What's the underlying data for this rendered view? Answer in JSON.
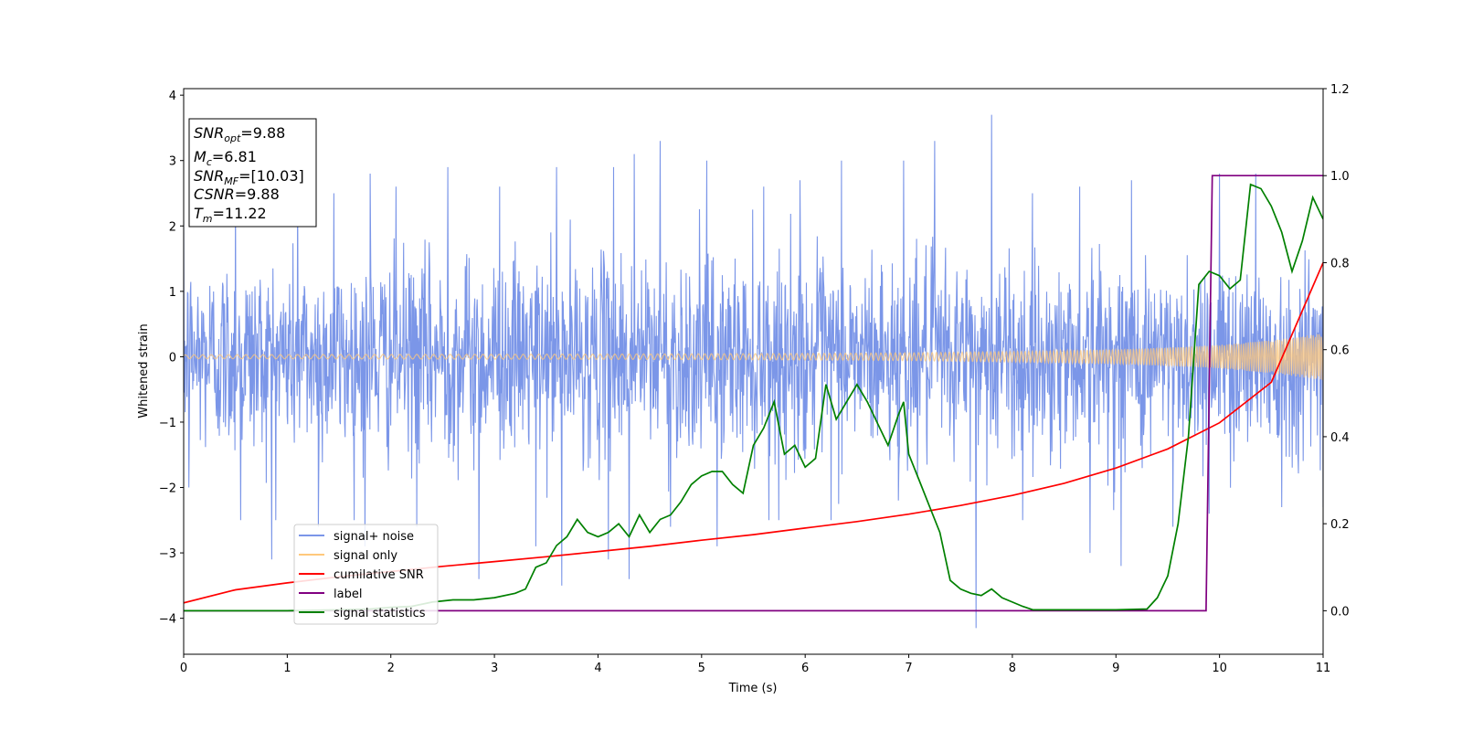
{
  "chart_data": {
    "type": "line",
    "xlabel": "Time (s)",
    "ylabel": "Whitened strain",
    "xlim": [
      0,
      11
    ],
    "ylim_left": [
      -4.55,
      4.1
    ],
    "ylim_right": [
      -0.1,
      1.2
    ],
    "x_ticks": [
      0,
      1,
      2,
      3,
      4,
      5,
      6,
      7,
      8,
      9,
      10,
      11
    ],
    "y_ticks_left": [
      -4,
      -3,
      -2,
      -1,
      0,
      1,
      2,
      3,
      4
    ],
    "y_ticks_left_labels": [
      "−4",
      "−3",
      "−2",
      "−1",
      "0",
      "1",
      "2",
      "3",
      "4"
    ],
    "y_ticks_right": [
      0.0,
      0.2,
      0.4,
      0.6,
      0.8,
      1.0,
      1.2
    ],
    "y_ticks_right_labels": [
      "0.0",
      "0.2",
      "0.4",
      "0.6",
      "0.8",
      "1.0",
      "1.2"
    ],
    "legend_position": "lower-left",
    "grid": false,
    "annotation_box": {
      "position": "top-left",
      "lines": [
        {
          "sym": "SNR",
          "sub": "opt",
          "val": "=9.88"
        },
        {
          "sym": "M",
          "sub": "c",
          "val": "=6.81"
        },
        {
          "sym": "SNR",
          "sub": "MF",
          "val": "=[10.03]"
        },
        {
          "sym": "CSNR",
          "sub": "",
          "val": "=9.88"
        },
        {
          "sym": "T",
          "sub": "m",
          "val": "=11.22"
        }
      ]
    },
    "series": [
      {
        "name": "signal+ noise",
        "color": "#7b96e8",
        "axis": "left",
        "description_stats": {
          "typical_amplitude": 1.6,
          "max": 3.7,
          "min": -4.15
        },
        "spikes": [
          [
            0.5,
            2.6
          ],
          [
            0.85,
            2.7
          ],
          [
            1.1,
            2.6
          ],
          [
            1.45,
            2.5
          ],
          [
            1.8,
            2.8
          ],
          [
            2.05,
            2.6
          ],
          [
            2.55,
            2.9
          ],
          [
            3.05,
            2.6
          ],
          [
            3.6,
            2.9
          ],
          [
            4.15,
            2.9
          ],
          [
            4.35,
            3.1
          ],
          [
            4.6,
            3.3
          ],
          [
            5.05,
            3.0
          ],
          [
            5.6,
            2.6
          ],
          [
            5.95,
            2.7
          ],
          [
            6.35,
            3.0
          ],
          [
            6.95,
            3.0
          ],
          [
            7.25,
            3.3
          ],
          [
            7.8,
            3.7
          ],
          [
            8.65,
            2.6
          ],
          [
            9.15,
            2.7
          ],
          [
            10.0,
            2.8
          ],
          [
            10.35,
            2.8
          ],
          [
            0.05,
            -2.0
          ],
          [
            0.55,
            -2.5
          ],
          [
            0.85,
            -3.1
          ],
          [
            1.3,
            -2.6
          ],
          [
            1.75,
            -2.9
          ],
          [
            2.25,
            -2.6
          ],
          [
            2.85,
            -3.4
          ],
          [
            3.4,
            -2.9
          ],
          [
            3.65,
            -3.5
          ],
          [
            4.1,
            -3.1
          ],
          [
            4.3,
            -3.4
          ],
          [
            4.7,
            -2.6
          ],
          [
            5.15,
            -2.9
          ],
          [
            5.65,
            -2.5
          ],
          [
            6.25,
            -2.5
          ],
          [
            6.9,
            -2.2
          ],
          [
            7.65,
            -4.15
          ],
          [
            8.1,
            -2.5
          ],
          [
            8.75,
            -3.0
          ],
          [
            9.05,
            -3.2
          ],
          [
            9.55,
            -2.6
          ],
          [
            9.9,
            -2.4
          ],
          [
            10.6,
            -2.3
          ],
          [
            11.0,
            -2.3
          ]
        ]
      },
      {
        "name": "signal only",
        "color": "#ffc87c",
        "axis": "left",
        "envelope": {
          "x": [
            0,
            2,
            4,
            6,
            7,
            8,
            9,
            9.5,
            10,
            10.5,
            11
          ],
          "amp": [
            0.03,
            0.035,
            0.04,
            0.05,
            0.06,
            0.08,
            0.11,
            0.14,
            0.18,
            0.25,
            0.36
          ]
        }
      },
      {
        "name": "cumilative SNR",
        "color": "#ff0000",
        "axis": "right",
        "x": [
          0,
          0.5,
          1,
          1.5,
          2,
          2.5,
          3,
          3.5,
          4,
          4.5,
          5,
          5.5,
          6,
          6.5,
          7,
          7.5,
          8,
          8.5,
          9,
          9.5,
          10,
          10.5,
          11
        ],
        "y": [
          0.018,
          0.048,
          0.064,
          0.078,
          0.09,
          0.102,
          0.113,
          0.124,
          0.136,
          0.148,
          0.162,
          0.175,
          0.19,
          0.205,
          0.222,
          0.242,
          0.265,
          0.293,
          0.328,
          0.372,
          0.432,
          0.525,
          0.8
        ]
      },
      {
        "name": "label",
        "color": "#800080",
        "axis": "right",
        "x": [
          0,
          9.87,
          9.93,
          11
        ],
        "y": [
          0,
          0,
          1,
          1
        ]
      },
      {
        "name": "signal statistics",
        "color": "#008000",
        "axis": "right",
        "x": [
          0,
          0.5,
          1.0,
          1.5,
          1.8,
          2.0,
          2.2,
          2.4,
          2.6,
          2.8,
          3.0,
          3.2,
          3.3,
          3.4,
          3.5,
          3.6,
          3.7,
          3.8,
          3.9,
          4.0,
          4.1,
          4.2,
          4.3,
          4.4,
          4.5,
          4.6,
          4.7,
          4.8,
          4.9,
          5.0,
          5.1,
          5.2,
          5.3,
          5.4,
          5.5,
          5.6,
          5.7,
          5.8,
          5.9,
          6.0,
          6.1,
          6.2,
          6.3,
          6.4,
          6.5,
          6.6,
          6.7,
          6.8,
          6.9,
          6.95,
          7.0,
          7.1,
          7.2,
          7.3,
          7.4,
          7.5,
          7.6,
          7.7,
          7.8,
          7.9,
          8.0,
          8.1,
          8.2,
          8.5,
          9.0,
          9.3,
          9.4,
          9.5,
          9.6,
          9.7,
          9.8,
          9.9,
          10.0,
          10.1,
          10.2,
          10.3,
          10.4,
          10.5,
          10.6,
          10.7,
          10.8,
          10.9,
          11.0
        ],
        "y": [
          0.0,
          0.0,
          0.0,
          0.002,
          0.004,
          0.008,
          0.01,
          0.02,
          0.025,
          0.025,
          0.03,
          0.04,
          0.05,
          0.1,
          0.11,
          0.15,
          0.17,
          0.21,
          0.18,
          0.17,
          0.18,
          0.2,
          0.17,
          0.22,
          0.18,
          0.21,
          0.22,
          0.25,
          0.29,
          0.31,
          0.32,
          0.32,
          0.29,
          0.27,
          0.38,
          0.42,
          0.48,
          0.36,
          0.38,
          0.33,
          0.35,
          0.52,
          0.44,
          0.48,
          0.52,
          0.48,
          0.43,
          0.38,
          0.45,
          0.48,
          0.36,
          0.3,
          0.24,
          0.18,
          0.07,
          0.05,
          0.04,
          0.035,
          0.05,
          0.03,
          0.02,
          0.01,
          0.002,
          0.002,
          0.002,
          0.004,
          0.03,
          0.08,
          0.2,
          0.4,
          0.75,
          0.78,
          0.77,
          0.74,
          0.76,
          0.98,
          0.97,
          0.93,
          0.87,
          0.78,
          0.85,
          0.95,
          0.9
        ]
      }
    ]
  }
}
